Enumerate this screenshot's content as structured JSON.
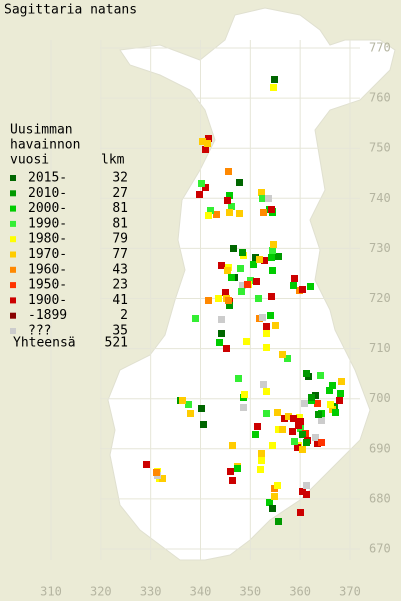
{
  "title": "Sagittaria natans",
  "legend": {
    "heading": [
      "Uusimman",
      "havainnon",
      "vuosi"
    ],
    "count_header": "lkm",
    "items": [
      {
        "label": "2015-",
        "count": 32,
        "color": "#006600"
      },
      {
        "label": "2010-",
        "count": 27,
        "color": "#009900"
      },
      {
        "label": "2000-",
        "count": 81,
        "color": "#00cc00"
      },
      {
        "label": "1990-",
        "count": 81,
        "color": "#33ee33"
      },
      {
        "label": "1980-",
        "count": 79,
        "color": "#ffff00"
      },
      {
        "label": "1970-",
        "count": 77,
        "color": "#ffcc00"
      },
      {
        "label": "1960-",
        "count": 43,
        "color": "#ff8800"
      },
      {
        "label": "1950-",
        "count": 23,
        "color": "#ff3300"
      },
      {
        "label": "1900-",
        "count": 41,
        "color": "#cc0000"
      },
      {
        "label": "-1899",
        "count": 2,
        "color": "#880000"
      },
      {
        "label": "???",
        "count": 35,
        "color": "#cccccc"
      }
    ],
    "total_label": "Yhteensä",
    "total": 521
  },
  "axes": {
    "yticks": [
      770,
      760,
      750,
      740,
      730,
      720,
      710,
      700,
      690,
      680,
      670
    ],
    "xticks": [
      310,
      320,
      330,
      340,
      350,
      360,
      370
    ]
  }
}
